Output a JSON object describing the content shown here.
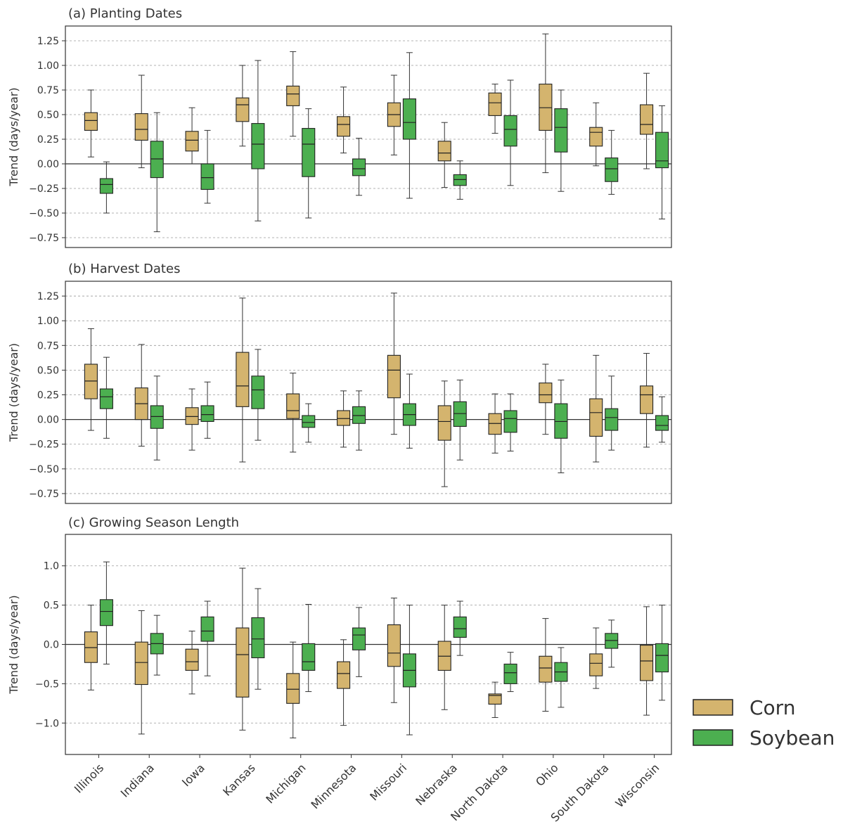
{
  "legend": {
    "items": [
      {
        "name": "Corn",
        "color": "#D4B46E"
      },
      {
        "name": "Soybean",
        "color": "#4CAF50"
      }
    ]
  },
  "categories": [
    "Illinois",
    "Indiana",
    "Iowa",
    "Kansas",
    "Michigan",
    "Minnesota",
    "Missouri",
    "Nebraska",
    "North Dakota",
    "Ohio",
    "South Dakota",
    "Wisconsin"
  ],
  "chart_data": [
    {
      "type": "box",
      "title": "(a) Planting Dates",
      "ylabel": "Trend (days/year)",
      "ylim": [
        -0.85,
        1.4
      ],
      "yticks": [
        -0.75,
        -0.5,
        -0.25,
        0,
        0.25,
        0.5,
        0.75,
        1.0,
        1.25
      ],
      "ytick_labels": [
        "−0.75",
        "−0.50",
        "−0.25",
        "0.00",
        "0.25",
        "0.50",
        "0.75",
        "1.00",
        "1.25"
      ],
      "grid": true,
      "series": [
        {
          "name": "Corn",
          "boxes": [
            [
              0.07,
              0.34,
              0.44,
              0.52,
              0.75
            ],
            [
              -0.04,
              0.24,
              0.35,
              0.51,
              0.9
            ],
            [
              0.0,
              0.13,
              0.24,
              0.33,
              0.57
            ],
            [
              0.18,
              0.43,
              0.6,
              0.67,
              1.0
            ],
            [
              0.28,
              0.59,
              0.71,
              0.79,
              1.14
            ],
            [
              0.11,
              0.28,
              0.4,
              0.48,
              0.78
            ],
            [
              0.09,
              0.38,
              0.5,
              0.62,
              0.9
            ],
            [
              -0.24,
              0.03,
              0.11,
              0.23,
              0.42
            ],
            [
              0.31,
              0.49,
              0.62,
              0.72,
              0.81
            ],
            [
              -0.09,
              0.34,
              0.57,
              0.81,
              1.32
            ],
            [
              -0.02,
              0.18,
              0.32,
              0.37,
              0.62
            ],
            [
              -0.05,
              0.3,
              0.4,
              0.6,
              0.92
            ]
          ]
        },
        {
          "name": "Soybean",
          "boxes": [
            [
              -0.5,
              -0.3,
              -0.21,
              -0.15,
              0.02
            ],
            [
              -0.69,
              -0.14,
              0.05,
              0.23,
              0.52
            ],
            [
              -0.4,
              -0.26,
              -0.14,
              0.0,
              0.34
            ],
            [
              -0.58,
              -0.05,
              0.2,
              0.41,
              1.05
            ],
            [
              -0.55,
              -0.13,
              0.2,
              0.36,
              0.56
            ],
            [
              -0.32,
              -0.12,
              -0.05,
              0.05,
              0.26
            ],
            [
              -0.35,
              0.25,
              0.42,
              0.66,
              1.13
            ],
            [
              -0.36,
              -0.22,
              -0.16,
              -0.11,
              0.03
            ],
            [
              -0.22,
              0.18,
              0.35,
              0.49,
              0.85
            ],
            [
              -0.28,
              0.12,
              0.37,
              0.56,
              0.75
            ],
            [
              -0.31,
              -0.18,
              -0.05,
              0.06,
              0.34
            ],
            [
              -0.56,
              -0.04,
              0.03,
              0.32,
              0.59
            ]
          ]
        }
      ]
    },
    {
      "type": "box",
      "title": "(b) Harvest Dates",
      "ylabel": "Trend (days/year)",
      "ylim": [
        -0.85,
        1.4
      ],
      "yticks": [
        -0.75,
        -0.5,
        -0.25,
        0,
        0.25,
        0.5,
        0.75,
        1.0,
        1.25
      ],
      "ytick_labels": [
        "−0.75",
        "−0.50",
        "−0.25",
        "0.00",
        "0.25",
        "0.50",
        "0.75",
        "1.00",
        "1.25"
      ],
      "grid": true,
      "series": [
        {
          "name": "Corn",
          "boxes": [
            [
              -0.11,
              0.21,
              0.39,
              0.56,
              0.92
            ],
            [
              -0.27,
              0.0,
              0.16,
              0.32,
              0.76
            ],
            [
              -0.31,
              -0.05,
              0.03,
              0.12,
              0.31
            ],
            [
              -0.43,
              0.13,
              0.34,
              0.68,
              1.23
            ],
            [
              -0.33,
              0.01,
              0.09,
              0.26,
              0.47
            ],
            [
              -0.28,
              -0.06,
              0.01,
              0.09,
              0.29
            ],
            [
              -0.15,
              0.22,
              0.5,
              0.65,
              1.28
            ],
            [
              -0.68,
              -0.21,
              -0.02,
              0.14,
              0.39
            ],
            [
              -0.34,
              -0.15,
              -0.04,
              0.06,
              0.26
            ],
            [
              -0.15,
              0.17,
              0.25,
              0.37,
              0.56
            ],
            [
              -0.43,
              -0.17,
              0.07,
              0.21,
              0.65
            ],
            [
              -0.28,
              0.06,
              0.25,
              0.34,
              0.67
            ]
          ]
        },
        {
          "name": "Soybean",
          "boxes": [
            [
              -0.19,
              0.11,
              0.23,
              0.31,
              0.63
            ],
            [
              -0.41,
              -0.09,
              0.03,
              0.14,
              0.44
            ],
            [
              -0.19,
              -0.02,
              0.05,
              0.14,
              0.38
            ],
            [
              -0.21,
              0.11,
              0.3,
              0.44,
              0.71
            ],
            [
              -0.23,
              -0.08,
              -0.03,
              0.04,
              0.16
            ],
            [
              -0.31,
              -0.04,
              0.04,
              0.13,
              0.29
            ],
            [
              -0.29,
              -0.06,
              0.05,
              0.16,
              0.46
            ],
            [
              -0.41,
              -0.07,
              0.06,
              0.18,
              0.4
            ],
            [
              -0.32,
              -0.13,
              0.01,
              0.09,
              0.26
            ],
            [
              -0.54,
              -0.19,
              -0.02,
              0.16,
              0.4
            ],
            [
              -0.31,
              -0.11,
              0.02,
              0.11,
              0.44
            ],
            [
              -0.23,
              -0.11,
              -0.06,
              0.04,
              0.23
            ]
          ]
        }
      ]
    },
    {
      "type": "box",
      "title": "(c) Growing Season Length",
      "ylabel": "Trend (days/year)",
      "ylim": [
        -1.4,
        1.4
      ],
      "yticks": [
        -1.0,
        -0.5,
        0,
        0.5,
        1.0
      ],
      "ytick_labels": [
        "−1.0",
        "−0.5",
        "0.0",
        "0.5",
        "1.0"
      ],
      "grid": true,
      "series": [
        {
          "name": "Corn",
          "boxes": [
            [
              -0.58,
              -0.23,
              -0.04,
              0.16,
              0.5
            ],
            [
              -1.14,
              -0.51,
              -0.23,
              0.03,
              0.43
            ],
            [
              -0.63,
              -0.33,
              -0.22,
              -0.06,
              0.17
            ],
            [
              -1.09,
              -0.67,
              -0.13,
              0.21,
              0.97
            ],
            [
              -1.19,
              -0.75,
              -0.57,
              -0.37,
              0.03
            ],
            [
              -1.03,
              -0.56,
              -0.37,
              -0.22,
              0.06
            ],
            [
              -0.74,
              -0.28,
              -0.11,
              0.25,
              0.59
            ],
            [
              -0.83,
              -0.33,
              -0.15,
              0.04,
              0.5
            ],
            [
              -0.93,
              -0.76,
              -0.65,
              -0.63,
              -0.48
            ],
            [
              -0.85,
              -0.48,
              -0.3,
              -0.15,
              0.33
            ],
            [
              -0.56,
              -0.4,
              -0.24,
              -0.12,
              0.21
            ],
            [
              -0.9,
              -0.46,
              -0.21,
              -0.01,
              0.48
            ]
          ]
        },
        {
          "name": "Soybean",
          "boxes": [
            [
              -0.25,
              0.24,
              0.42,
              0.57,
              1.05
            ],
            [
              -0.39,
              -0.12,
              0.01,
              0.14,
              0.37
            ],
            [
              -0.4,
              0.04,
              0.17,
              0.35,
              0.55
            ],
            [
              -0.57,
              -0.17,
              0.07,
              0.34,
              0.71
            ],
            [
              -0.6,
              -0.33,
              -0.22,
              0.01,
              0.51
            ],
            [
              -0.41,
              -0.07,
              0.12,
              0.21,
              0.47
            ],
            [
              -1.15,
              -0.54,
              -0.33,
              -0.12,
              0.5
            ],
            [
              -0.14,
              0.09,
              0.2,
              0.35,
              0.55
            ],
            [
              -0.6,
              -0.5,
              -0.36,
              -0.25,
              -0.1
            ],
            [
              -0.8,
              -0.47,
              -0.35,
              -0.23,
              -0.04
            ],
            [
              -0.29,
              -0.05,
              0.05,
              0.14,
              0.31
            ],
            [
              -0.71,
              -0.35,
              -0.14,
              0.01,
              0.5
            ]
          ]
        }
      ]
    }
  ]
}
